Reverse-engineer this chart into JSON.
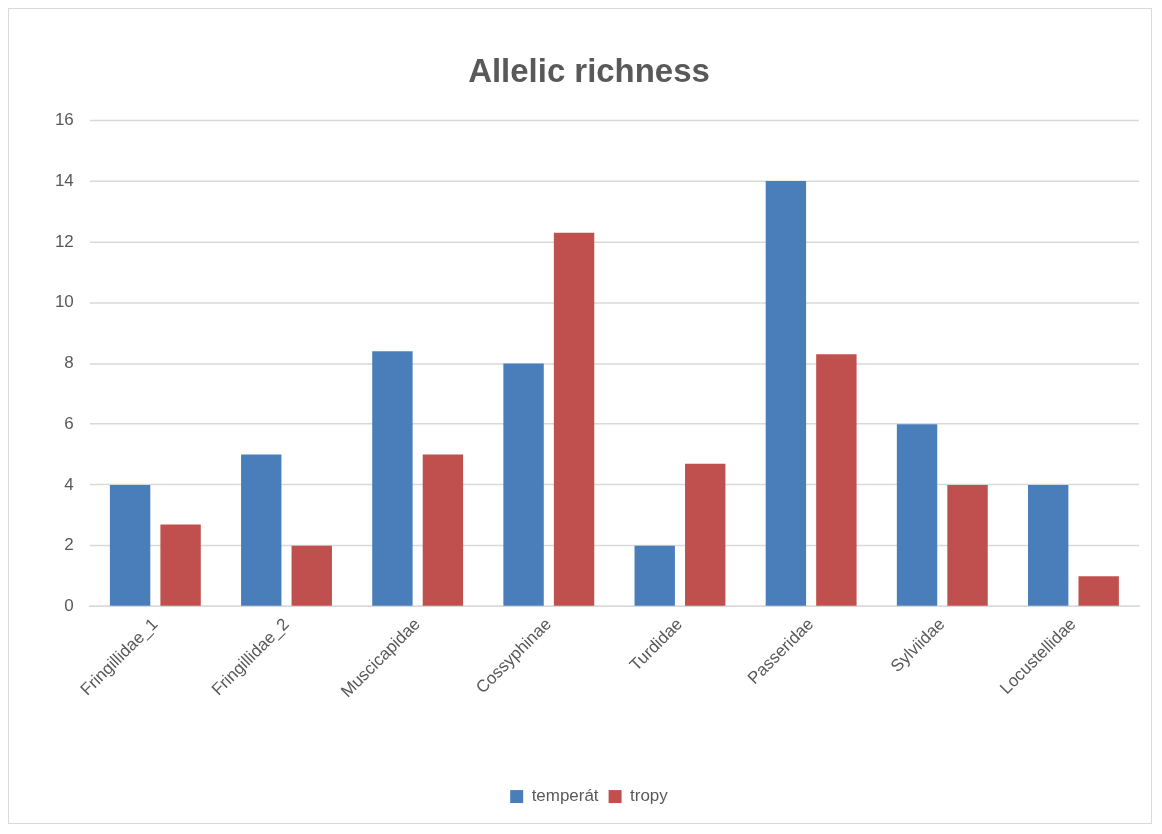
{
  "chart_data": {
    "type": "bar",
    "title": "Allelic richness",
    "categories": [
      "Fringillidae_1",
      "Fringillidae_2",
      "Muscicapidae",
      "Cossyphinae",
      "Turdidae",
      "Passeridae",
      "Sylviidae",
      "Locustellidae"
    ],
    "series": [
      {
        "name": "temperát",
        "color": "#4a7ebb",
        "values": [
          4,
          5,
          8.4,
          8,
          2,
          14,
          6,
          4
        ]
      },
      {
        "name": "tropy",
        "color": "#c0504d",
        "values": [
          2.7,
          2,
          5,
          12.3,
          4.7,
          8.3,
          4,
          1
        ]
      }
    ],
    "ylim": [
      0,
      16
    ],
    "yticks": [
      0,
      2,
      4,
      6,
      8,
      10,
      12,
      14,
      16
    ],
    "grid": "y",
    "legend": "bottom"
  }
}
